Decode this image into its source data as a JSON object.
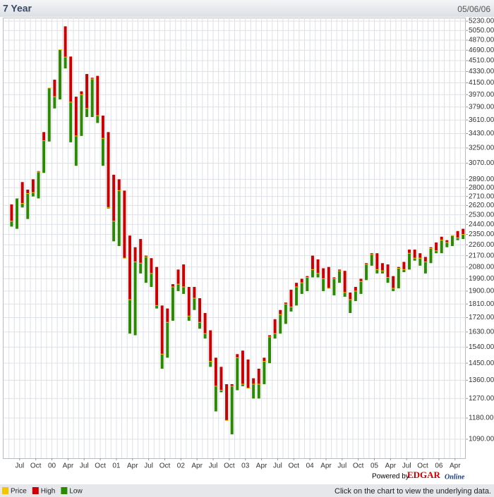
{
  "chart_data": {
    "type": "hilo",
    "title": "7 Year",
    "date": "05/06/06",
    "powered_by": [
      "Powered by",
      "EDGAR",
      "Online"
    ],
    "footer_note": "Click on the chart to view the underlying data.",
    "log_scale": true,
    "grid": true,
    "xlim": [
      "1999-04",
      "2006-05"
    ],
    "ylim": [
      1015,
      5300
    ],
    "x": [
      "1999-05",
      "1999-06",
      "1999-07",
      "1999-08",
      "1999-09",
      "1999-10",
      "1999-11",
      "1999-12",
      "2000-01",
      "2000-02",
      "2000-03",
      "2000-04",
      "2000-05",
      "2000-06",
      "2000-07",
      "2000-08",
      "2000-09",
      "2000-10",
      "2000-11",
      "2000-12",
      "2001-01",
      "2001-02",
      "2001-03",
      "2001-04",
      "2001-05",
      "2001-06",
      "2001-07",
      "2001-08",
      "2001-09",
      "2001-10",
      "2001-11",
      "2001-12",
      "2002-01",
      "2002-02",
      "2002-03",
      "2002-04",
      "2002-05",
      "2002-06",
      "2002-07",
      "2002-08",
      "2002-09",
      "2002-10",
      "2002-11",
      "2002-12",
      "2003-01",
      "2003-02",
      "2003-03",
      "2003-04",
      "2003-05",
      "2003-06",
      "2003-07",
      "2003-08",
      "2003-09",
      "2003-10",
      "2003-11",
      "2003-12",
      "2004-01",
      "2004-02",
      "2004-03",
      "2004-04",
      "2004-05",
      "2004-06",
      "2004-07",
      "2004-08",
      "2004-09",
      "2004-10",
      "2004-11",
      "2004-12",
      "2005-01",
      "2005-02",
      "2005-03",
      "2005-04",
      "2005-05",
      "2005-06",
      "2005-07",
      "2005-08",
      "2005-09",
      "2005-10",
      "2005-11",
      "2005-12",
      "2006-01",
      "2006-02",
      "2006-03",
      "2006-04",
      "2006-05"
    ],
    "series": [
      {
        "name": "Price",
        "color": "#f5c400",
        "values": [
          2470,
          2690,
          2640,
          2740,
          2750,
          2970,
          3340,
          4070,
          3940,
          4700,
          4570,
          3860,
          3400,
          3970,
          3770,
          4210,
          3670,
          3370,
          2600,
          2470,
          2770,
          2150,
          1840,
          2120,
          2110,
          2160,
          2030,
          1800,
          1500,
          1690,
          1930,
          1950,
          1930,
          1730,
          1850,
          1690,
          1620,
          1460,
          1330,
          1310,
          1170,
          1330,
          1480,
          1340,
          1320,
          1340,
          1340,
          1460,
          1600,
          1620,
          1740,
          1810,
          1790,
          1930,
          1960,
          2000,
          2060,
          2030,
          1990,
          1920,
          1990,
          2050,
          1890,
          1840,
          1900,
          1970,
          2100,
          2180,
          2060,
          2050,
          2000,
          1920,
          2070,
          2060,
          2190,
          2150,
          2150,
          2120,
          2230,
          2210,
          2300,
          2280,
          2340,
          2320,
          2350
        ]
      },
      {
        "name": "High",
        "color": "#cc0000",
        "values": [
          2630,
          2690,
          2860,
          2780,
          2890,
          2980,
          3450,
          4070,
          4200,
          4700,
          5130,
          4580,
          3940,
          4020,
          4290,
          4230,
          4260,
          3670,
          3450,
          2940,
          2890,
          2770,
          2340,
          2240,
          2310,
          2170,
          2150,
          2080,
          1800,
          1780,
          1950,
          2060,
          2100,
          1930,
          1930,
          1850,
          1750,
          1640,
          1480,
          1430,
          1340,
          1340,
          1500,
          1520,
          1470,
          1370,
          1420,
          1480,
          1610,
          1710,
          1770,
          1820,
          1910,
          1960,
          1990,
          2010,
          2170,
          2140,
          2070,
          2080,
          2000,
          2060,
          2050,
          1890,
          1930,
          1990,
          2110,
          2190,
          2190,
          2110,
          2100,
          2010,
          2080,
          2120,
          2220,
          2220,
          2190,
          2160,
          2240,
          2280,
          2330,
          2300,
          2340,
          2380,
          2400
        ]
      },
      {
        "name": "Low",
        "color": "#2a8a00",
        "values": [
          2420,
          2400,
          2600,
          2490,
          2710,
          2690,
          2960,
          3330,
          3770,
          3900,
          4380,
          3320,
          3040,
          3400,
          3650,
          3650,
          3570,
          3040,
          2590,
          2290,
          2250,
          2150,
          1620,
          1610,
          2030,
          1960,
          1930,
          1780,
          1420,
          1480,
          1700,
          1900,
          1880,
          1700,
          1770,
          1650,
          1590,
          1430,
          1210,
          1300,
          1170,
          1110,
          1310,
          1330,
          1320,
          1270,
          1270,
          1340,
          1450,
          1590,
          1620,
          1680,
          1760,
          1800,
          1880,
          1900,
          2000,
          2000,
          1900,
          1920,
          1870,
          1960,
          1860,
          1750,
          1830,
          1880,
          1980,
          2090,
          2030,
          2030,
          1960,
          1900,
          1920,
          2040,
          2060,
          2130,
          2090,
          2030,
          2110,
          2190,
          2190,
          2240,
          2250,
          2300,
          2310
        ]
      }
    ],
    "xticks": [
      {
        "value": "1999-07",
        "label": "Jul"
      },
      {
        "value": "1999-10",
        "label": "Oct"
      },
      {
        "value": "2000-01",
        "label": "00"
      },
      {
        "value": "2000-04",
        "label": "Apr"
      },
      {
        "value": "2000-07",
        "label": "Jul"
      },
      {
        "value": "2000-10",
        "label": "Oct"
      },
      {
        "value": "2001-01",
        "label": "01"
      },
      {
        "value": "2001-04",
        "label": "Apr"
      },
      {
        "value": "2001-07",
        "label": "Jul"
      },
      {
        "value": "2001-10",
        "label": "Oct"
      },
      {
        "value": "2002-01",
        "label": "02"
      },
      {
        "value": "2002-04",
        "label": "Apr"
      },
      {
        "value": "2002-07",
        "label": "Jul"
      },
      {
        "value": "2002-10",
        "label": "Oct"
      },
      {
        "value": "2003-01",
        "label": "03"
      },
      {
        "value": "2003-04",
        "label": "Apr"
      },
      {
        "value": "2003-07",
        "label": "Jul"
      },
      {
        "value": "2003-10",
        "label": "Oct"
      },
      {
        "value": "2004-01",
        "label": "04"
      },
      {
        "value": "2004-04",
        "label": "Apr"
      },
      {
        "value": "2004-07",
        "label": "Jul"
      },
      {
        "value": "2004-10",
        "label": "Oct"
      },
      {
        "value": "2005-01",
        "label": "05"
      },
      {
        "value": "2005-04",
        "label": "Apr"
      },
      {
        "value": "2005-07",
        "label": "Jul"
      },
      {
        "value": "2005-10",
        "label": "Oct"
      },
      {
        "value": "2006-01",
        "label": "06"
      },
      {
        "value": "2006-04",
        "label": "Apr"
      }
    ],
    "yticks": [
      {
        "value": 1090,
        "label": "1090.00"
      },
      {
        "value": 1180,
        "label": "1180.00"
      },
      {
        "value": 1270,
        "label": "1270.00"
      },
      {
        "value": 1360,
        "label": "1360.00"
      },
      {
        "value": 1450,
        "label": "1450.00"
      },
      {
        "value": 1540,
        "label": "1540.00"
      },
      {
        "value": 1630,
        "label": "1630.00"
      },
      {
        "value": 1720,
        "label": "1720.00"
      },
      {
        "value": 1810,
        "label": "1810.00"
      },
      {
        "value": 1900,
        "label": "1900.00"
      },
      {
        "value": 1990,
        "label": "1990.00"
      },
      {
        "value": 2080,
        "label": "2080.00"
      },
      {
        "value": 2170,
        "label": "2170.00"
      },
      {
        "value": 2260,
        "label": "2260.00"
      },
      {
        "value": 2350,
        "label": "2350.00"
      },
      {
        "value": 2440,
        "label": "2440.00"
      },
      {
        "value": 2530,
        "label": "2530.00"
      },
      {
        "value": 2620,
        "label": "2620.00"
      },
      {
        "value": 2710,
        "label": "2710.00"
      },
      {
        "value": 2800,
        "label": "2800.00"
      },
      {
        "value": 2890,
        "label": "2890.00"
      },
      {
        "value": 3070,
        "label": "3070.00"
      },
      {
        "value": 3250,
        "label": "3250.00"
      },
      {
        "value": 3430,
        "label": "3430.00"
      },
      {
        "value": 3610,
        "label": "3610.00"
      },
      {
        "value": 3790,
        "label": "3790.00"
      },
      {
        "value": 3970,
        "label": "3970.00"
      },
      {
        "value": 4150,
        "label": "4150.00"
      },
      {
        "value": 4330,
        "label": "4330.00"
      },
      {
        "value": 4510,
        "label": "4510.00"
      },
      {
        "value": 4690,
        "label": "4690.00"
      },
      {
        "value": 4870,
        "label": "4870.00"
      },
      {
        "value": 5050,
        "label": "5050.00"
      },
      {
        "value": 5230,
        "label": "5230.00"
      }
    ]
  }
}
